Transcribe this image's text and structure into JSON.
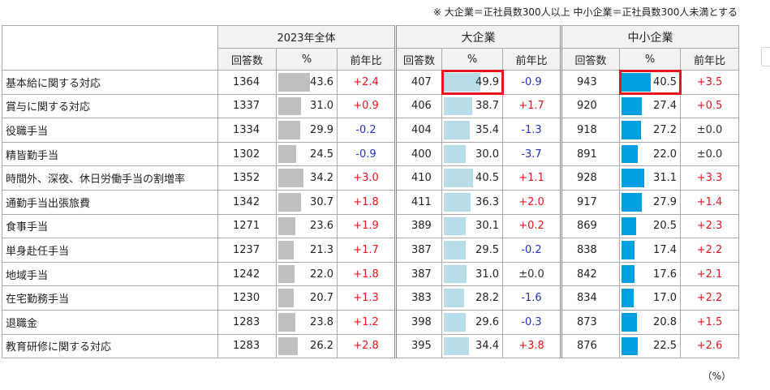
{
  "note": "※ 大企業＝正社員数300人以上 中小企業＝正社員数300人未満とする",
  "unit": "（%）",
  "colors": {
    "total_bar": "#bfbfbf",
    "large_bar": "#b7dde9",
    "sme_bar": "#00a0e0",
    "positive": "#e8141e",
    "negative": "#2431c9",
    "highlight": "#e8141e"
  },
  "chart_data": {
    "type": "table",
    "groups": [
      "2023年全体",
      "大企業",
      "中小企業"
    ],
    "subheaders": [
      "回答数",
      "%",
      "前年比"
    ],
    "rows": [
      {
        "item": "基本給に関する対応",
        "total": {
          "n": "1364",
          "pct": "43.6",
          "diff": "+2.4"
        },
        "large": {
          "n": "407",
          "pct": "49.9",
          "diff": "-0.9"
        },
        "sme": {
          "n": "943",
          "pct": "40.5",
          "diff": "+3.5"
        }
      },
      {
        "item": "賞与に関する対応",
        "total": {
          "n": "1337",
          "pct": "31.0",
          "diff": "+0.9"
        },
        "large": {
          "n": "406",
          "pct": "38.7",
          "diff": "+1.7"
        },
        "sme": {
          "n": "920",
          "pct": "27.4",
          "diff": "+0.5"
        }
      },
      {
        "item": "役職手当",
        "total": {
          "n": "1334",
          "pct": "29.9",
          "diff": "-0.2"
        },
        "large": {
          "n": "404",
          "pct": "35.4",
          "diff": "-1.3"
        },
        "sme": {
          "n": "918",
          "pct": "27.2",
          "diff": "±0.0"
        }
      },
      {
        "item": "精皆勤手当",
        "total": {
          "n": "1302",
          "pct": "24.5",
          "diff": "-0.9"
        },
        "large": {
          "n": "400",
          "pct": "30.0",
          "diff": "-3.7"
        },
        "sme": {
          "n": "891",
          "pct": "22.0",
          "diff": "±0.0"
        }
      },
      {
        "item": "時間外、深夜、休日労働手当の割増率",
        "total": {
          "n": "1352",
          "pct": "34.2",
          "diff": "+3.0"
        },
        "large": {
          "n": "410",
          "pct": "40.5",
          "diff": "+1.1"
        },
        "sme": {
          "n": "928",
          "pct": "31.1",
          "diff": "+3.3"
        }
      },
      {
        "item": "通勤手当出張旅費",
        "total": {
          "n": "1342",
          "pct": "30.7",
          "diff": "+1.8"
        },
        "large": {
          "n": "411",
          "pct": "36.3",
          "diff": "+2.0"
        },
        "sme": {
          "n": "917",
          "pct": "27.9",
          "diff": "+1.4"
        }
      },
      {
        "item": "食事手当",
        "total": {
          "n": "1271",
          "pct": "23.6",
          "diff": "+1.9"
        },
        "large": {
          "n": "389",
          "pct": "30.1",
          "diff": "+0.2"
        },
        "sme": {
          "n": "869",
          "pct": "20.5",
          "diff": "+2.3"
        }
      },
      {
        "item": "単身赴任手当",
        "total": {
          "n": "1237",
          "pct": "21.3",
          "diff": "+1.7"
        },
        "large": {
          "n": "387",
          "pct": "29.5",
          "diff": "-0.2"
        },
        "sme": {
          "n": "838",
          "pct": "17.4",
          "diff": "+2.2"
        }
      },
      {
        "item": "地域手当",
        "total": {
          "n": "1242",
          "pct": "22.0",
          "diff": "+1.8"
        },
        "large": {
          "n": "387",
          "pct": "31.0",
          "diff": "±0.0"
        },
        "sme": {
          "n": "842",
          "pct": "17.6",
          "diff": "+2.1"
        }
      },
      {
        "item": "在宅勤務手当",
        "total": {
          "n": "1230",
          "pct": "20.7",
          "diff": "+1.3"
        },
        "large": {
          "n": "383",
          "pct": "28.2",
          "diff": "-1.6"
        },
        "sme": {
          "n": "834",
          "pct": "17.0",
          "diff": "+2.2"
        }
      },
      {
        "item": "退職金",
        "total": {
          "n": "1283",
          "pct": "23.8",
          "diff": "+1.2"
        },
        "large": {
          "n": "398",
          "pct": "29.6",
          "diff": "-0.3"
        },
        "sme": {
          "n": "873",
          "pct": "20.8",
          "diff": "+1.5"
        }
      },
      {
        "item": "教育研修に関する対応",
        "total": {
          "n": "1283",
          "pct": "26.2",
          "diff": "+2.8"
        },
        "large": {
          "n": "395",
          "pct": "34.4",
          "diff": "+3.8"
        },
        "sme": {
          "n": "876",
          "pct": "22.5",
          "diff": "+2.6"
        }
      }
    ],
    "highlighted": [
      {
        "row": 0,
        "group": "large"
      },
      {
        "row": 0,
        "group": "sme"
      }
    ]
  }
}
